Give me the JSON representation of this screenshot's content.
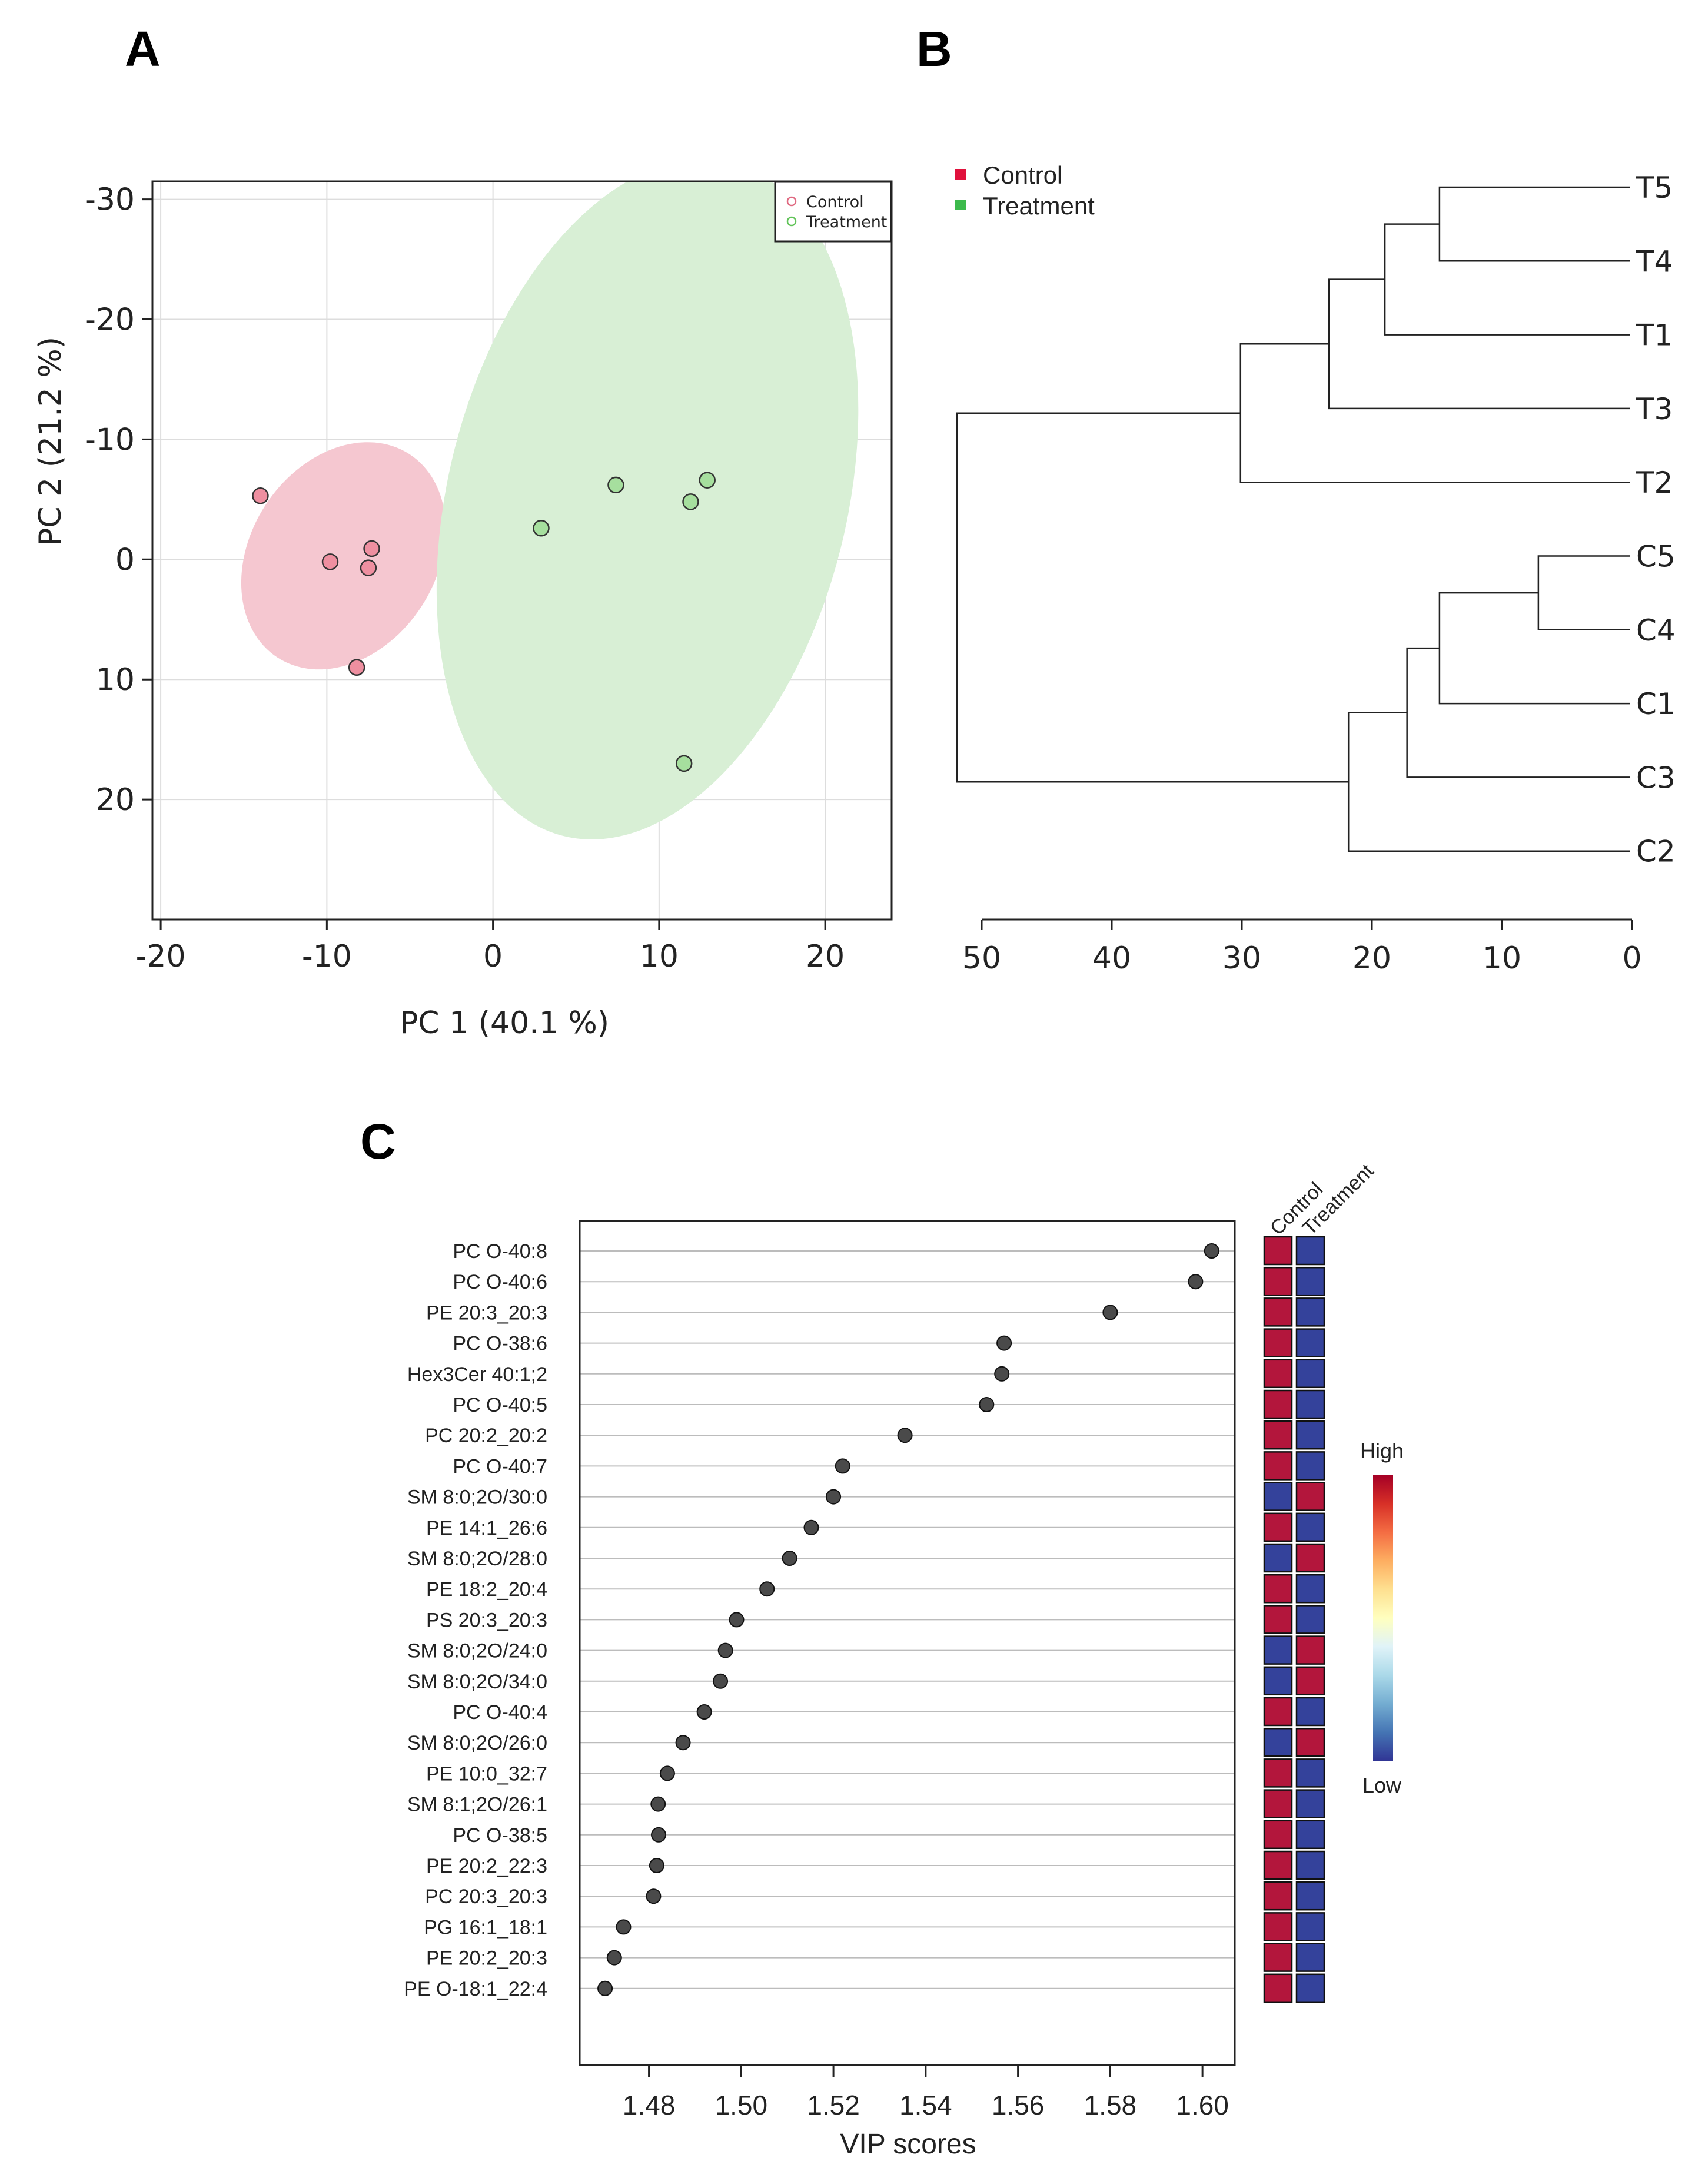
{
  "panels": {
    "a": "A",
    "b": "B",
    "c": "C"
  },
  "chart_data": [
    {
      "type": "scatter",
      "panel": "A",
      "xlabel": "PC 1 (40.1 %)",
      "ylabel": "PC 2 (21.2 %)",
      "xlim": [
        -20.5,
        24
      ],
      "ylim": [
        -31.5,
        30
      ],
      "y_inverted": true,
      "xticks": [
        -20,
        -10,
        0,
        10,
        20
      ],
      "xtick_labels": [
        "-20",
        "-10",
        "0",
        "10",
        "20"
      ],
      "yticks": [
        -30,
        -20,
        -10,
        0,
        10,
        20
      ],
      "ytick_labels": [
        "-30",
        "-20",
        "-10",
        "0",
        "10",
        "20"
      ],
      "grid": true,
      "legend_position": "top-right",
      "colors": {
        "Control": "#ee8fa0",
        "Treatment": "#a6df9e",
        "Control_ellipse": "#f5c7d0",
        "Treatment_ellipse": "#d8efd5"
      },
      "series": [
        {
          "name": "Control",
          "points": [
            [
              -14,
              -5.3
            ],
            [
              -9.8,
              0.2
            ],
            [
              -7.3,
              -0.9
            ],
            [
              -7.5,
              0.7
            ],
            [
              -8.2,
              9
            ]
          ],
          "ellipse": {
            "cx": -9,
            "cy": -0.3,
            "rx": 10.1,
            "ry": 5.6,
            "angle_deg": 57
          }
        },
        {
          "name": "Treatment",
          "points": [
            [
              2.9,
              -2.6
            ],
            [
              7.4,
              -6.2
            ],
            [
              11.9,
              -4.8
            ],
            [
              12.9,
              -6.6
            ],
            [
              11.5,
              17
            ]
          ],
          "ellipse": {
            "cx": 9.3,
            "cy": -5,
            "rx": 28.9,
            "ry": 12,
            "angle_deg": 76
          }
        }
      ]
    },
    {
      "type": "dendrogram",
      "panel": "B",
      "axis_range": [
        0,
        51
      ],
      "xticks": [
        50,
        40,
        30,
        20,
        10,
        0
      ],
      "xtick_labels": [
        "50",
        "40",
        "30",
        "20",
        "10",
        "0"
      ],
      "legend": [
        {
          "label": "Control",
          "color": "#e0113c"
        },
        {
          "label": "Treatment",
          "color": "#3cba4c"
        }
      ],
      "leaves": [
        {
          "label": "T5",
          "group": "Treatment"
        },
        {
          "label": "T4",
          "group": "Treatment"
        },
        {
          "label": "T1",
          "group": "Treatment"
        },
        {
          "label": "T3",
          "group": "Treatment"
        },
        {
          "label": "T2",
          "group": "Treatment"
        },
        {
          "label": "C5",
          "group": "Control"
        },
        {
          "label": "C4",
          "group": "Control"
        },
        {
          "label": "C1",
          "group": "Control"
        },
        {
          "label": "C3",
          "group": "Control"
        },
        {
          "label": "C2",
          "group": "Control"
        }
      ],
      "leaf_colors": {
        "Treatment": "#22b04a",
        "Control": "#ff1414"
      },
      "merges": [
        {
          "a": "T5",
          "b": "T4",
          "height": 14.8
        },
        {
          "a": "C5",
          "b": "C4",
          "height": 7.2
        },
        {
          "a": "m0",
          "b": "T1",
          "height": 19
        },
        {
          "a": "m1",
          "b": "C1",
          "height": 14.8
        },
        {
          "a": "m2",
          "b": "T3",
          "height": 23.3
        },
        {
          "a": "m3",
          "b": "C3",
          "height": 17.3
        },
        {
          "a": "m4",
          "b": "T2",
          "height": 30.1
        },
        {
          "a": "m5",
          "b": "C2",
          "height": 21.8
        },
        {
          "a": "m6",
          "b": "m7",
          "height": 51.9
        }
      ]
    },
    {
      "type": "dot",
      "panel": "C",
      "xlabel": "VIP scores",
      "xlim": [
        1.465,
        1.607
      ],
      "xticks": [
        1.48,
        1.5,
        1.52,
        1.54,
        1.56,
        1.58,
        1.6
      ],
      "xtick_labels": [
        "1.48",
        "1.50",
        "1.52",
        "1.54",
        "1.56",
        "1.58",
        "1.60"
      ],
      "features": [
        "PC O-40:8",
        "PC O-40:6",
        "PE 20:3_20:3",
        "PC O-38:6",
        "Hex3Cer 40:1;2",
        "PC O-40:5",
        "PC 20:2_20:2",
        "PC O-40:7",
        "SM 8:0;2O/30:0",
        "PE 14:1_26:6",
        "SM 8:0;2O/28:0",
        "PE 18:2_20:4",
        "PS 20:3_20:3",
        "SM 8:0;2O/24:0",
        "SM 8:0;2O/34:0",
        "PC O-40:4",
        "SM 8:0;2O/26:0",
        "PE 10:0_32:7",
        "SM 8:1;2O/26:1",
        "PC O-38:5",
        "PE 20:2_22:3",
        "PC 20:3_20:3",
        "PG 16:1_18:1",
        "PE 20:2_20:3",
        "PE O-18:1_22:4"
      ],
      "values": [
        1.602,
        1.5985,
        1.58,
        1.557,
        1.5565,
        1.5532,
        1.5355,
        1.522,
        1.52,
        1.5152,
        1.5105,
        1.5056,
        1.499,
        1.4966,
        1.4955,
        1.492,
        1.4874,
        1.484,
        1.482,
        1.4821,
        1.4817,
        1.481,
        1.4745,
        1.4725,
        1.4705
      ],
      "heatmap": {
        "columns": [
          "Control",
          "Treatment"
        ],
        "cells": [
          [
            "high",
            "low"
          ],
          [
            "high",
            "low"
          ],
          [
            "high",
            "low"
          ],
          [
            "high",
            "low"
          ],
          [
            "high",
            "low"
          ],
          [
            "high",
            "low"
          ],
          [
            "high",
            "low"
          ],
          [
            "high",
            "low"
          ],
          [
            "low",
            "high"
          ],
          [
            "high",
            "low"
          ],
          [
            "low",
            "high"
          ],
          [
            "high",
            "low"
          ],
          [
            "high",
            "low"
          ],
          [
            "low",
            "high"
          ],
          [
            "low",
            "high"
          ],
          [
            "high",
            "low"
          ],
          [
            "low",
            "high"
          ],
          [
            "high",
            "low"
          ],
          [
            "high",
            "low"
          ],
          [
            "high",
            "low"
          ],
          [
            "high",
            "low"
          ],
          [
            "high",
            "low"
          ],
          [
            "high",
            "low"
          ],
          [
            "high",
            "low"
          ],
          [
            "high",
            "low"
          ]
        ],
        "colors": {
          "high": "#b3163c",
          "low": "#34429b"
        }
      },
      "colorbar": {
        "high_label": "High",
        "low_label": "Low",
        "stops": [
          "#a50026",
          "#d73027",
          "#f46d43",
          "#fdae61",
          "#fee090",
          "#ffffbf",
          "#e0f3f8",
          "#abd9e9",
          "#74add1",
          "#4575b4",
          "#313695"
        ]
      }
    }
  ]
}
